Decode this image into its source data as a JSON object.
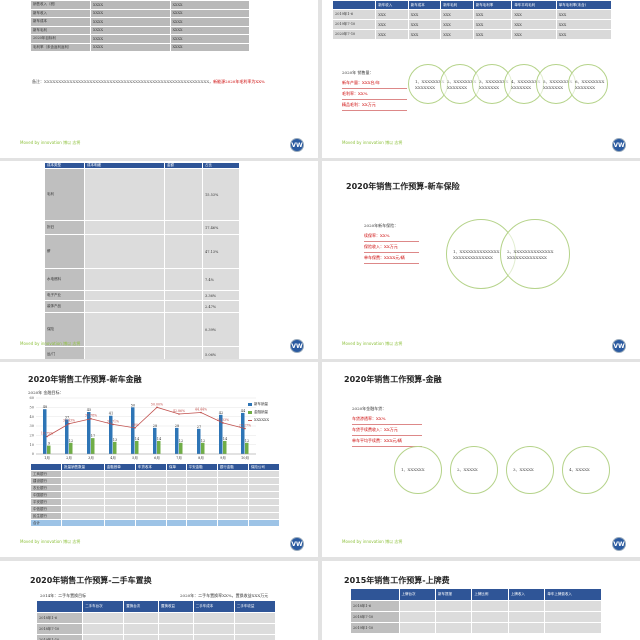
{
  "footer": {
    "text": "Moved by innovation  博以 志将",
    "logo": "VW"
  },
  "slide1": {
    "rows": [
      {
        "label": "销售收入（税）",
        "a": "XXXX",
        "b": "XXXX"
      },
      {
        "label": "新车收入",
        "a": "XXXX",
        "b": "XXXX"
      },
      {
        "label": "新车成本",
        "a": "XXXX",
        "b": "XXXX"
      },
      {
        "label": "新车毛利",
        "a": "XXXX",
        "b": "XXXX"
      },
      {
        "label": "2020年目标利",
        "a": "XXXX",
        "b": "XXXX"
      },
      {
        "label": "毛利率（未含返利返利）",
        "a": "XXXX",
        "b": "XXXX"
      }
    ],
    "note": "备注：XXXXXXXXXXXXXXXXXXXXXXXXXXXXXXXXXXXXXXXXXXXXXXXXXXXXXXXXXX，",
    "note_red": "新能源2020年毛利率为XX%"
  },
  "slide2": {
    "headers": [
      "",
      "新车收入",
      "新车成本",
      "新车毛利",
      "新车毛利率",
      "单车平均毛利",
      "单车毛利率(未含)"
    ],
    "rows": [
      {
        "label": "2019年1-6",
        "cells": [
          "XXX",
          "XXX",
          "XXX",
          "XXX",
          "XXX",
          "XXX"
        ]
      },
      {
        "label": "2019年7-10",
        "cells": [
          "XXX",
          "XXX",
          "XXX",
          "XXX",
          "XXX",
          "XXX"
        ]
      },
      {
        "label": "2020年7-10",
        "cells": [
          "XXX",
          "XXX",
          "XXX",
          "XXX",
          "XXX",
          "XXX"
        ]
      }
    ],
    "info_title": "2020年 销售量：",
    "info_lines": [
      "新车产量：XXX台/年",
      "毛利率：XX%",
      "精品毛利：XX万元"
    ],
    "circles": [
      "1、XXXXXXXX XXXXXXX",
      "2、XXXXXXXX XXXXXXX",
      "3、XXXXXXXX XXXXXXX",
      "4、XXXXXXXX XXXXXXX",
      "5、XXXXXXXX XXXXXXX",
      "6、XXXXXXXX XXXXXXX"
    ]
  },
  "slide3": {
    "headers": [
      "成本类型",
      "成本明细",
      "金额",
      "占比"
    ],
    "rows": [
      {
        "type": "毛利",
        "pct": "15.53%"
      },
      {
        "type": "折旧",
        "pct": "17.46%"
      },
      {
        "type": "薪",
        "pct": "47.13%"
      },
      {
        "type": "水电燃料",
        "pct": "7.4%"
      },
      {
        "type": "电子产业",
        "pct": "3.36%"
      },
      {
        "type": "装饰产品",
        "pct": "2.47%"
      },
      {
        "type": "保险",
        "pct": "0.39%"
      },
      {
        "type": "运/门",
        "pct": "5.06%"
      }
    ],
    "total_label": "合计",
    "total_value": "XX"
  },
  "slide4": {
    "title": "2020年销售工作预算-新车保险",
    "info_title": "2020年新车保险：",
    "info_lines": [
      "续保率：XX%",
      "保险收入：XX万元",
      "单车保费：XXXX元/辆"
    ],
    "circles": [
      "1、XXXXXXXXXXXXXX XXXXXXXXXXXXXX",
      "2、XXXXXXXXXXXXXX XXXXXXXXXXXXXX"
    ]
  },
  "slide5": {
    "title": "2020年销售工作预算-新车金融",
    "chart_label": "2020年 金融目标：",
    "chart_data": {
      "type": "bar",
      "categories": [
        "1月",
        "2月",
        "3月",
        "4月",
        "5月",
        "6月",
        "7月",
        "8月",
        "9月",
        "10月"
      ],
      "ylim": [
        0,
        60
      ],
      "yticks": [
        0,
        10,
        20,
        30,
        40,
        50,
        60
      ],
      "series": [
        {
          "name": "新车销量",
          "values": [
            48,
            37,
            45,
            41,
            50,
            28,
            28,
            27,
            42,
            44
          ],
          "color": "#2e75b6"
        },
        {
          "name": "金融销量",
          "values": [
            9,
            12,
            17,
            13,
            14,
            14,
            12,
            12,
            14,
            12
          ],
          "color": "#70ad47"
        },
        {
          "name": "XXXXXX",
          "values": [
            18.75,
            32.43,
            37.78,
            31.71,
            28.0,
            50.0,
            42.86,
            44.44,
            33.33,
            27.27
          ],
          "labels": [
            "18.75%",
            "32.43%",
            "37.78%",
            "31.71%",
            "28%",
            "50.00%",
            "42.86%",
            "44.44%",
            "33.33%",
            "27.27%"
          ],
          "color": "#c0504d"
        }
      ]
    },
    "headers": [
      "",
      "批量销售数量",
      "金融首单",
      "车贷收本",
      "保单",
      "平安金融",
      "银行金融",
      "保险公司"
    ],
    "rows": [
      "工商银行",
      "建设银行",
      "农业银行",
      "中国银行",
      "平安银行",
      "中信银行",
      "民生银行"
    ],
    "total_label": "合计"
  },
  "slide6": {
    "title": "2020年销售工作预算-金融",
    "info_title": "2020年金融车贷：",
    "info_lines": [
      "车贷渗透率：XX%",
      "车贷手续费收入：XX万元",
      "单车平均手续费：XXX元/辆"
    ],
    "circles": [
      "1、XXXXXX",
      "2、XXXXX",
      "3、XXXXX",
      "4、XXXXX"
    ]
  },
  "slide7": {
    "title": "2020年销售工作预算-二手车置换",
    "left_note": "2014年：二手车置换目标",
    "right_note": "2020年：二手车置换率XX%，置换收益XXX万元",
    "headers": [
      "",
      "二手车台次",
      "置换台次",
      "置换收益",
      "二手车成本",
      "二手车收益"
    ],
    "rows": [
      "2018年1-6",
      "2018年7-10",
      "2019年1-10"
    ]
  },
  "slide8": {
    "title": "2015年销售工作预算-上牌费",
    "headers": [
      "",
      "上牌台次",
      "新车提报",
      "上牌比例",
      "上牌收入",
      "单车上牌费收入"
    ],
    "rows": [
      "2018年1-6",
      "2018年7-10",
      "2019年1-10"
    ]
  }
}
